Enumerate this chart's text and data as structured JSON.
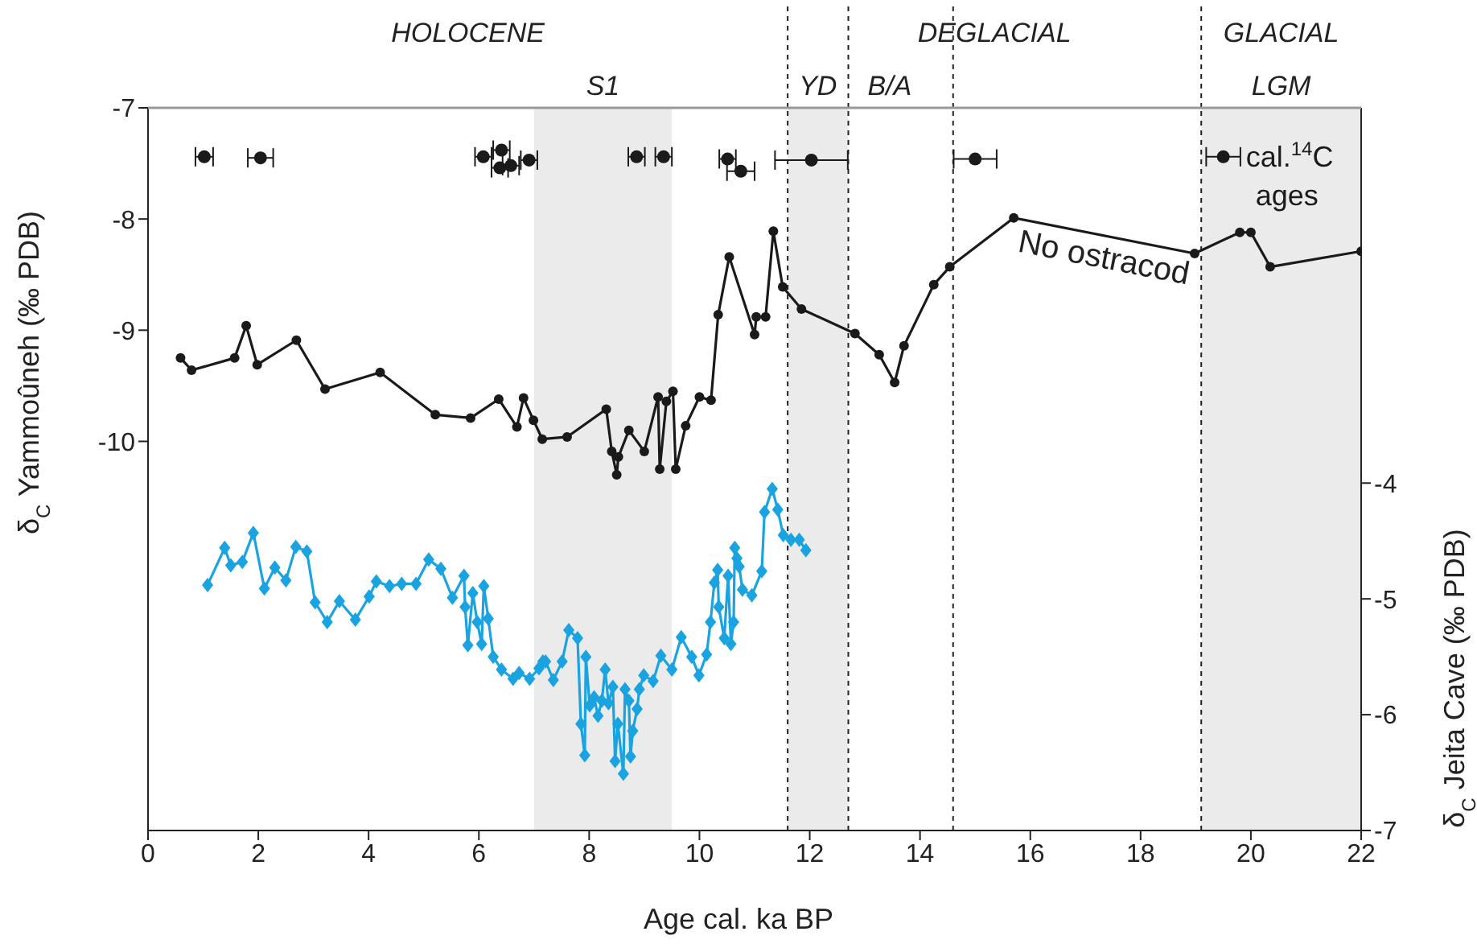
{
  "chart_data": {
    "type": "line",
    "xlabel": "Age cal. ka BP",
    "ylabel": "δ$_{C}$ Yammoûneh (‰ PDB)",
    "y2label": "δ$_{C}$ Jeita Cave (‰ PDB)",
    "xlim": [
      0,
      22
    ],
    "xticks": [
      0,
      2,
      4,
      6,
      8,
      10,
      12,
      14,
      16,
      18,
      20,
      22
    ],
    "ylim": [
      -13.5,
      -7
    ],
    "yticks": [
      -10,
      -9,
      -8,
      -7
    ],
    "y2lim": [
      -7,
      -0.76
    ],
    "y2ticks": [
      -7,
      -6,
      -5,
      -4
    ],
    "series": [
      {
        "color": "#1a1a1a",
        "marker": "circle",
        "x": [
          0.59,
          0.79,
          1.57,
          1.78,
          1.98,
          2.69,
          3.21,
          4.21,
          5.21,
          5.85,
          6.36,
          6.69,
          6.81,
          6.99,
          7.15,
          7.6,
          8.31,
          8.41,
          8.5,
          8.53,
          8.72,
          9.0,
          9.25,
          9.28,
          9.4,
          9.52,
          9.57,
          9.75,
          10.0,
          10.21,
          10.34,
          10.54,
          11.0,
          11.03,
          11.2,
          11.34,
          11.51,
          11.85,
          12.82,
          13.26,
          13.54,
          13.71,
          14.25,
          14.54,
          15.7,
          18.98,
          19.8,
          20.0,
          20.35,
          22.0
        ],
        "values": [
          -9.25,
          -9.36,
          -9.25,
          -8.96,
          -9.31,
          -9.09,
          -9.53,
          -9.38,
          -9.76,
          -9.79,
          -9.62,
          -9.87,
          -9.61,
          -9.81,
          -9.98,
          -9.96,
          -9.71,
          -10.09,
          -10.3,
          -10.14,
          -9.9,
          -10.09,
          -9.6,
          -10.25,
          -9.64,
          -9.55,
          -10.25,
          -9.86,
          -9.6,
          -9.63,
          -8.86,
          -8.34,
          -9.04,
          -8.88,
          -8.88,
          -8.11,
          -8.61,
          -8.81,
          -9.03,
          -9.22,
          -9.47,
          -9.14,
          -8.59,
          -8.43,
          -7.99,
          -8.31,
          -8.12,
          -8.12,
          -8.43,
          -8.29
        ]
      },
      {
        "type": "scatter",
        "name": "cal.$^{14}$C ages",
        "color": "#1a1a1a",
        "marker": "circle",
        "x": [
          1.02,
          2.04,
          6.08,
          6.38,
          6.41,
          6.58,
          6.91,
          8.86,
          9.35,
          10.51,
          10.75,
          12.03,
          15.0,
          19.5
        ],
        "values": [
          -7.44,
          -7.45,
          -7.44,
          -7.54,
          -7.38,
          -7.52,
          -7.47,
          -7.44,
          -7.44,
          -7.46,
          -7.57,
          -7.47,
          -7.46,
          -7.44
        ],
        "xerrors": [
          0.16,
          0.23,
          0.15,
          0.15,
          0.15,
          0.15,
          0.15,
          0.15,
          0.15,
          0.15,
          0.25,
          0.66,
          0.39,
          0.31
        ]
      },
      {
        "axis": "y2",
        "color": "#19a3e0",
        "marker": "diamond",
        "x": [
          1.08,
          1.39,
          1.5,
          1.71,
          1.91,
          2.11,
          2.3,
          2.5,
          2.68,
          2.88,
          3.03,
          3.25,
          3.47,
          3.76,
          4.01,
          4.14,
          4.38,
          4.6,
          4.86,
          5.09,
          5.31,
          5.52,
          5.73,
          5.75,
          5.8,
          5.89,
          5.97,
          6.05,
          6.09,
          6.17,
          6.26,
          6.41,
          6.62,
          6.73,
          6.92,
          7.09,
          7.16,
          7.21,
          7.35,
          7.51,
          7.63,
          7.79,
          7.85,
          7.92,
          7.94,
          8.01,
          8.09,
          8.16,
          8.23,
          8.29,
          8.35,
          8.43,
          8.47,
          8.52,
          8.62,
          8.65,
          8.72,
          8.75,
          8.79,
          8.87,
          8.91,
          8.99,
          9.16,
          9.3,
          9.5,
          9.67,
          9.86,
          9.99,
          10.13,
          10.2,
          10.27,
          10.33,
          10.35,
          10.45,
          10.52,
          10.57,
          10.62,
          10.64,
          10.68,
          10.72,
          10.78,
          10.95,
          11.13,
          11.18,
          11.32,
          11.42,
          11.52,
          11.66,
          11.81,
          11.93
        ],
        "values": [
          -4.88,
          -4.56,
          -4.71,
          -4.68,
          -4.43,
          -4.91,
          -4.73,
          -4.84,
          -4.55,
          -4.59,
          -5.03,
          -5.2,
          -5.02,
          -5.18,
          -4.98,
          -4.85,
          -4.89,
          -4.87,
          -4.87,
          -4.66,
          -4.74,
          -4.99,
          -4.8,
          -5.07,
          -5.4,
          -4.95,
          -5.2,
          -5.39,
          -4.89,
          -5.17,
          -5.5,
          -5.61,
          -5.69,
          -5.64,
          -5.69,
          -5.6,
          -5.54,
          -5.54,
          -5.7,
          -5.54,
          -5.27,
          -5.34,
          -6.08,
          -6.35,
          -5.5,
          -5.92,
          -5.85,
          -6.01,
          -5.88,
          -5.61,
          -5.9,
          -5.76,
          -6.4,
          -6.08,
          -6.51,
          -5.78,
          -5.88,
          -6.36,
          -6.14,
          -5.95,
          -5.78,
          -5.66,
          -5.71,
          -5.49,
          -5.61,
          -5.33,
          -5.5,
          -5.66,
          -5.48,
          -5.2,
          -4.86,
          -4.75,
          -5.07,
          -5.34,
          -4.8,
          -5.39,
          -5.2,
          -4.56,
          -4.65,
          -4.72,
          -4.92,
          -4.97,
          -4.76,
          -4.25,
          -4.05,
          -4.23,
          -4.45,
          -4.49,
          -4.49,
          -4.58
        ]
      }
    ],
    "bands": [
      {
        "axis": "x",
        "from": 7.0,
        "to": 9.5,
        "label": "S1",
        "color": "#ebebeb"
      },
      {
        "axis": "x",
        "from": 11.6,
        "to": 12.7,
        "label": "YD",
        "color": "#ebebeb"
      },
      {
        "axis": "x",
        "from": 19.1,
        "to": 22,
        "label": "LGM",
        "color": "#ebebeb"
      }
    ],
    "ref_lines": [
      {
        "axis": "x",
        "value": 11.6,
        "line_style": "dashed"
      },
      {
        "axis": "x",
        "value": 12.7,
        "line_style": "dashed",
        "label": "B/A"
      },
      {
        "axis": "x",
        "value": 14.6,
        "line_style": "dashed"
      },
      {
        "axis": "x",
        "value": 19.1,
        "line_style": "dashed"
      }
    ],
    "annotations": [
      "HOLOCENE",
      "DEGLACIAL",
      "GLACIAL",
      {
        "text": "No ostracod",
        "x": 17.3,
        "y": -8.15
      }
    ]
  }
}
